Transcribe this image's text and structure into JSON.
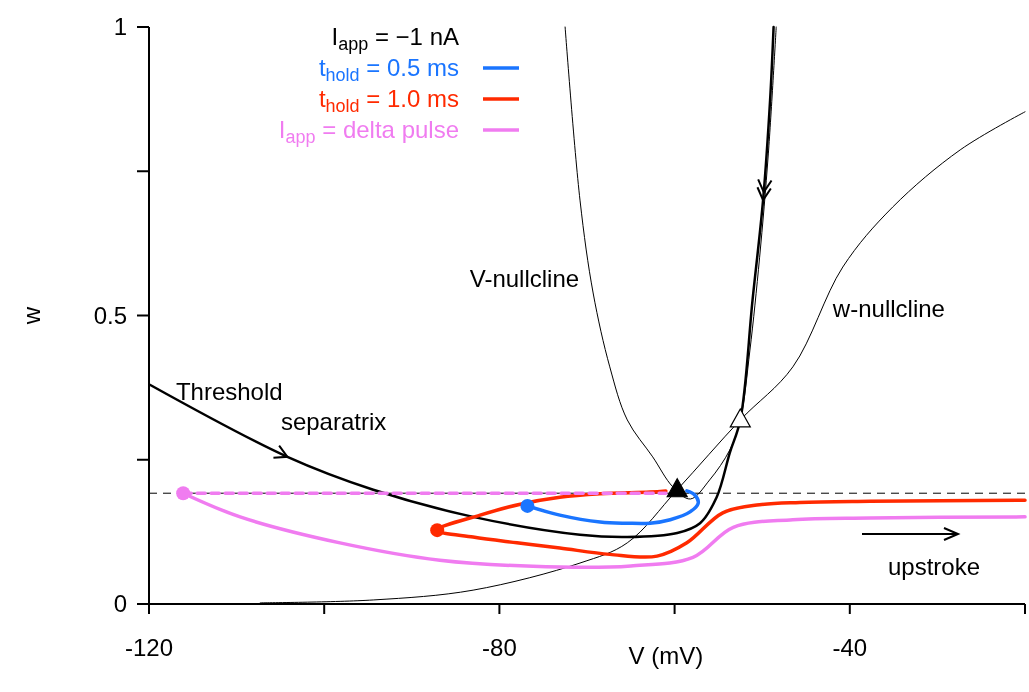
{
  "chart_data": {
    "type": "line",
    "xlabel": "V (mV)",
    "ylabel": "w",
    "legend_title": "I$_{app}$ = −1 nA",
    "legend": "top left",
    "grid": false,
    "xlim": [
      -120,
      -20
    ],
    "xticks": [
      -120,
      {
        "value": -100,
        "label": null
      },
      -80,
      {
        "value": -60,
        "label": null
      },
      -40,
      {
        "value": -20,
        "label": null
      }
    ],
    "ylim": [
      0,
      1
    ],
    "yticks": [
      0,
      {
        "value": 0.25,
        "label": null
      },
      0.5,
      {
        "value": 0.75,
        "label": null
      },
      1
    ],
    "ref_lines": [
      {
        "axis": "y",
        "value": 0.192,
        "line_style": "dashed",
        "color": "#000000"
      }
    ],
    "annotations": [
      "upstroke"
    ],
    "series": [
      {
        "name": "V-nullcline",
        "color": "#000000",
        "x": [
          -72.5,
          -70.8,
          -69.3,
          -67.4,
          -65.4,
          -62.5,
          -60.2,
          -58.2,
          -56.0,
          -53.7,
          -52.5,
          -51.4,
          -50.3,
          -49.3,
          -48.4
        ],
        "values": [
          1.0,
          0.7,
          0.539,
          0.411,
          0.319,
          0.255,
          0.203,
          0.182,
          0.215,
          0.267,
          0.319,
          0.44,
          0.6,
          0.78,
          1.0
        ]
      },
      {
        "name": "w-nullcline",
        "color": "#000000",
        "x": [
          -107.3,
          -94.4,
          -83.0,
          -70.8,
          -65.4,
          -59.7,
          -52.5,
          -46.5,
          -40.8,
          -35.1,
          -27.4,
          -20.0
        ],
        "values": [
          0.002,
          0.007,
          0.024,
          0.071,
          0.106,
          0.198,
          0.319,
          0.411,
          0.584,
          0.688,
          0.787,
          0.853
        ]
      },
      {
        "name": "Threshold separatrix",
        "color": "#000000",
        "x": [
          -119.9,
          -104.2,
          -94.4,
          -83.0,
          -70.8,
          -65.4,
          -59.7,
          -57.1,
          -55.2,
          -53.7,
          -52.5,
          -51.1,
          -49.9,
          -49.1,
          -48.7
        ],
        "values": [
          0.38,
          0.255,
          0.198,
          0.151,
          0.12,
          0.116,
          0.123,
          0.14,
          0.185,
          0.262,
          0.319,
          0.527,
          0.7,
          0.873,
          1.0
        ]
      },
      {
        "name": "t$_{hold}$ = 0.5 ms",
        "color": "#1a75ff",
        "x": [
          -76.8,
          -73.1,
          -68.5,
          -65.4,
          -62.8,
          -60.5,
          -58.2,
          -57.3,
          -57.7,
          -58.6
        ],
        "values": [
          0.17,
          0.154,
          0.142,
          0.14,
          0.14,
          0.146,
          0.16,
          0.175,
          0.189,
          0.196
        ]
      },
      {
        "name": "t$_{hold}$ = 1.0 ms",
        "color": "#ff2a00",
        "x": [
          -61.0,
          -62.8,
          -68.5,
          -73.1,
          -77.6,
          -82.2,
          -87.1,
          -83.0,
          -78.0,
          -73.1,
          -67.4,
          -62.0,
          -58.6,
          -54.5,
          -50.3,
          -45.7,
          -37.7,
          -20.0
        ],
        "values": [
          0.196,
          0.194,
          0.191,
          0.185,
          0.173,
          0.154,
          0.128,
          0.116,
          0.106,
          0.097,
          0.086,
          0.083,
          0.106,
          0.158,
          0.172,
          0.176,
          0.178,
          0.18
        ]
      },
      {
        "name": "I$_{app}$ = delta pulse",
        "color": "#f07cf0",
        "x": [
          -116.1,
          -109.6,
          -98.2,
          -86.8,
          -73.1,
          -65.0,
          -57.9,
          -53.3,
          -46.5,
          -37.7,
          -20.0
        ],
        "values": [
          0.192,
          0.151,
          0.106,
          0.076,
          0.064,
          0.066,
          0.081,
          0.133,
          0.146,
          0.149,
          0.151
        ]
      },
      {
        "color": "#f07cf0",
        "line_style": "dashed",
        "x": [
          -116.1,
          -61.0
        ],
        "values": [
          0.192,
          0.192
        ]
      },
      {
        "type": "scatter",
        "marker": "circle",
        "color": "#f07cf0",
        "x": [
          -116.1
        ],
        "values": [
          0.192
        ]
      },
      {
        "type": "scatter",
        "marker": "circle",
        "color": "#ff2a00",
        "x": [
          -87.1
        ],
        "values": [
          0.128
        ]
      },
      {
        "type": "scatter",
        "marker": "circle",
        "color": "#1a75ff",
        "x": [
          -76.8
        ],
        "values": [
          0.17
        ]
      },
      {
        "type": "scatter",
        "marker": "triangle",
        "color": "#000000",
        "x": [
          -59.7
        ],
        "values": [
          0.198
        ]
      },
      {
        "type": "scatter",
        "marker": "triangle",
        "color": "#ffffff",
        "x": [
          -52.5
        ],
        "values": [
          0.319
        ]
      }
    ]
  }
}
